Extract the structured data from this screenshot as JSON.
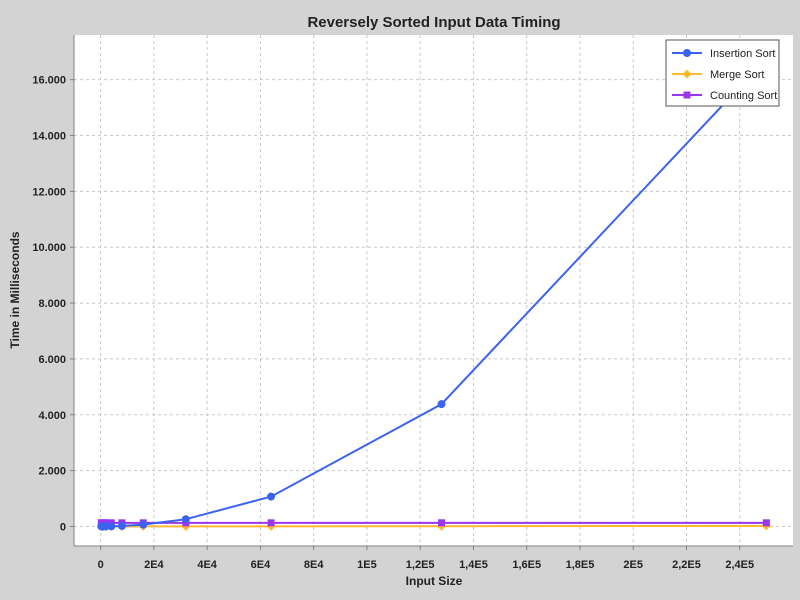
{
  "chart_data": {
    "type": "line",
    "title": "Reversely Sorted Input Data Timing",
    "xlabel": "Input Size",
    "ylabel": "Time in Milliseconds",
    "xlim": [
      -10000,
      260000
    ],
    "ylim": [
      -700,
      17600
    ],
    "x_ticks": [
      0,
      20000,
      40000,
      60000,
      80000,
      100000,
      120000,
      140000,
      160000,
      180000,
      200000,
      220000,
      240000
    ],
    "x_tick_labels": [
      "0",
      "2E4",
      "4E4",
      "6E4",
      "8E4",
      "1E5",
      "1,2E5",
      "1,4E5",
      "1,6E5",
      "1,8E5",
      "2E5",
      "2,2E5",
      "2,4E5"
    ],
    "y_ticks": [
      0,
      2000,
      4000,
      6000,
      8000,
      10000,
      12000,
      14000,
      16000
    ],
    "y_tick_labels": [
      "0",
      "2.000",
      "4.000",
      "6.000",
      "8.000",
      "10.000",
      "12.000",
      "14.000",
      "16.000"
    ],
    "grid": true,
    "legend_position": "top-right",
    "series": [
      {
        "name": "Insertion Sort",
        "color": "#3b63f0",
        "marker": "circle",
        "x": [
          250,
          500,
          1000,
          2000,
          4000,
          8000,
          16000,
          32000,
          64000,
          128000,
          250000
        ],
        "y": [
          1,
          1,
          2,
          3,
          5,
          20,
          65,
          260,
          1070,
          4380,
          16750
        ]
      },
      {
        "name": "Merge Sort",
        "color": "#ffb830",
        "marker": "diamond",
        "x": [
          250,
          500,
          1000,
          2000,
          4000,
          8000,
          16000,
          32000,
          64000,
          128000,
          250000
        ],
        "y": [
          0,
          0,
          0,
          0,
          0,
          0,
          1,
          2,
          4,
          9,
          20
        ]
      },
      {
        "name": "Counting Sort",
        "color": "#9a36ee",
        "marker": "square",
        "x": [
          250,
          500,
          1000,
          2000,
          4000,
          8000,
          16000,
          32000,
          64000,
          128000,
          250000
        ],
        "y": [
          130,
          130,
          130,
          130,
          130,
          130,
          130,
          130,
          130,
          130,
          130
        ]
      }
    ]
  }
}
